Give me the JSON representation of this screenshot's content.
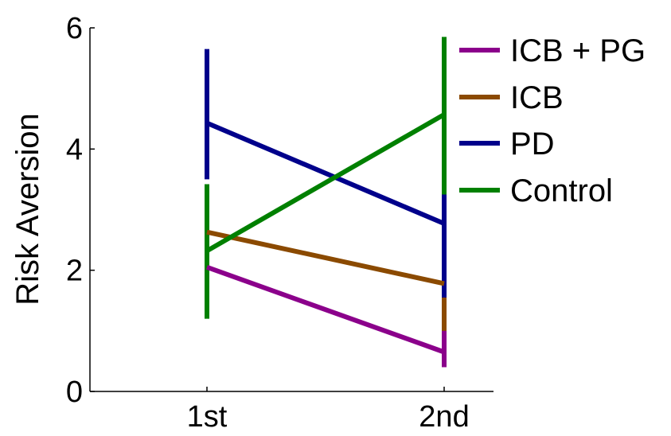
{
  "chart_data": {
    "type": "line",
    "categories": [
      "1st",
      "2nd"
    ],
    "ylabel": "Risk Aversion",
    "xlabel": "",
    "ylim": [
      0,
      6
    ],
    "yticks": [
      "0",
      "2",
      "4",
      "6"
    ],
    "grid": false,
    "legend_position": "top-right",
    "series": [
      {
        "name": "ICB + PG",
        "color": "#8b008b",
        "values": [
          2.05,
          0.65
        ],
        "error_low": [
          2.05,
          0.4
        ],
        "error_high": [
          2.05,
          1.05
        ]
      },
      {
        "name": "ICB",
        "color": "#8b4a00",
        "values": [
          2.63,
          1.78
        ],
        "error_low": [
          2.55,
          1.0
        ],
        "error_high": [
          2.7,
          1.55
        ]
      },
      {
        "name": "PD",
        "color": "#00008b",
        "values": [
          4.43,
          2.77
        ],
        "error_low": [
          3.5,
          1.55
        ],
        "error_high": [
          5.65,
          3.25
        ]
      },
      {
        "name": "Control",
        "color": "#008000",
        "values": [
          2.32,
          4.57
        ],
        "error_low": [
          1.2,
          3.25
        ],
        "error_high": [
          3.42,
          5.85
        ]
      }
    ]
  }
}
